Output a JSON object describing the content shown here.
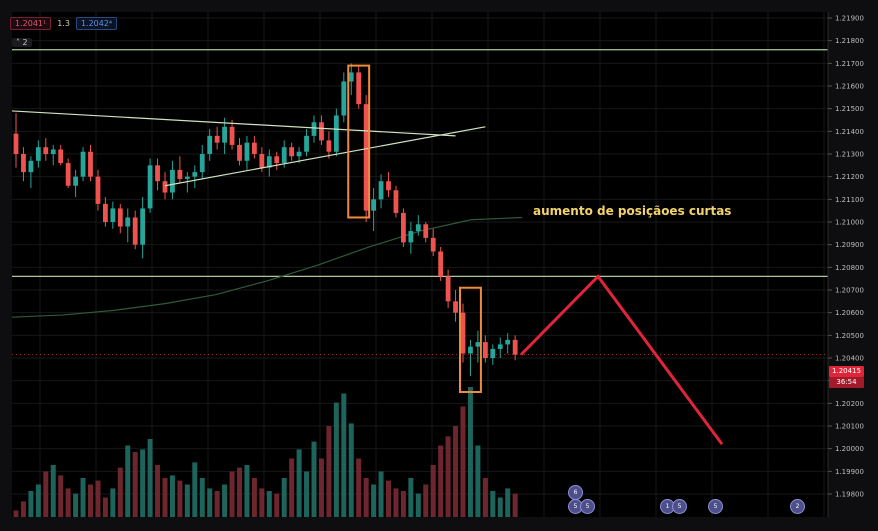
{
  "toolbar": {
    "bid": "1.2041¹",
    "spread": "1.3",
    "ask": "1.2042⁴",
    "collapse_label": "2"
  },
  "annotation": "aumento de posiçãoes curtas",
  "price_axis": {
    "current_price": "1.20415",
    "countdown": "36:54"
  },
  "event_badges": [
    "6",
    "5",
    "5",
    "1",
    "5",
    "5",
    "2"
  ],
  "colors": {
    "bull": "#26a69a",
    "bear": "#ef5350",
    "projection": "#e0243a",
    "highlight_box": "#f08a3c",
    "trendline": "#cfe3c0",
    "annotation_text": "#f3d36b"
  },
  "chart_data": {
    "type": "candlestick",
    "y_axis": {
      "min": 1.198,
      "max": 1.219,
      "ticks": [
        "1.21900",
        "1.21800",
        "1.21700",
        "1.21600",
        "1.21500",
        "1.21400",
        "1.21300",
        "1.21200",
        "1.21100",
        "1.21000",
        "1.20900",
        "1.20800",
        "1.20700",
        "1.20600",
        "1.20500",
        "1.20400",
        "1.20300",
        "1.20200",
        "1.20100",
        "1.20000",
        "1.19900",
        "1.19800"
      ]
    },
    "horizontal_levels": [
      1.2176,
      1.2076
    ],
    "current_price_line": 1.20415,
    "moving_average": [
      1.2058,
      1.2059,
      1.2061,
      1.2064,
      1.2068,
      1.2074,
      1.2081,
      1.2089,
      1.2096,
      1.2101,
      1.2102
    ],
    "candles": [
      [
        1.2139,
        1.2148,
        1.2124,
        1.213
      ],
      [
        1.213,
        1.2133,
        1.2118,
        1.2122
      ],
      [
        1.2122,
        1.2129,
        1.2115,
        1.2127
      ],
      [
        1.2127,
        1.2136,
        1.2124,
        1.2133
      ],
      [
        1.2133,
        1.2137,
        1.2127,
        1.213
      ],
      [
        1.213,
        1.2134,
        1.2125,
        1.2132
      ],
      [
        1.2132,
        1.2134,
        1.2125,
        1.2126
      ],
      [
        1.2126,
        1.2128,
        1.2115,
        1.2116
      ],
      [
        1.2116,
        1.2123,
        1.2111,
        1.212
      ],
      [
        1.212,
        1.2133,
        1.2118,
        1.2131
      ],
      [
        1.2131,
        1.2134,
        1.2118,
        1.212
      ],
      [
        1.212,
        1.2123,
        1.2105,
        1.2108
      ],
      [
        1.2108,
        1.2111,
        1.2098,
        1.21
      ],
      [
        1.21,
        1.2109,
        1.2097,
        1.2106
      ],
      [
        1.2106,
        1.2108,
        1.2095,
        1.2098
      ],
      [
        1.2098,
        1.2106,
        1.2091,
        1.2102
      ],
      [
        1.2102,
        1.2105,
        1.2088,
        1.209
      ],
      [
        1.209,
        1.2111,
        1.2084,
        1.2106
      ],
      [
        1.2106,
        1.2128,
        1.2104,
        1.2125
      ],
      [
        1.2125,
        1.2128,
        1.2114,
        1.2118
      ],
      [
        1.2118,
        1.2122,
        1.211,
        1.2113
      ],
      [
        1.2113,
        1.2127,
        1.211,
        1.2123
      ],
      [
        1.2123,
        1.2129,
        1.2117,
        1.2119
      ],
      [
        1.2119,
        1.2122,
        1.2113,
        1.212
      ],
      [
        1.212,
        1.2125,
        1.2115,
        1.2122
      ],
      [
        1.2122,
        1.2134,
        1.2119,
        1.213
      ],
      [
        1.213,
        1.2141,
        1.2127,
        1.2138
      ],
      [
        1.2138,
        1.2142,
        1.2132,
        1.2135
      ],
      [
        1.2135,
        1.2146,
        1.213,
        1.2142
      ],
      [
        1.2142,
        1.2145,
        1.2132,
        1.2134
      ],
      [
        1.2134,
        1.2137,
        1.2125,
        1.2127
      ],
      [
        1.2127,
        1.2138,
        1.2123,
        1.2135
      ],
      [
        1.2135,
        1.2138,
        1.2128,
        1.213
      ],
      [
        1.213,
        1.2133,
        1.2122,
        1.2124
      ],
      [
        1.2124,
        1.2132,
        1.212,
        1.2129
      ],
      [
        1.2129,
        1.2131,
        1.2123,
        1.2126
      ],
      [
        1.2126,
        1.2136,
        1.2124,
        1.2133
      ],
      [
        1.2133,
        1.2135,
        1.2127,
        1.2129
      ],
      [
        1.2129,
        1.2133,
        1.2126,
        1.2131
      ],
      [
        1.2131,
        1.2141,
        1.2129,
        1.2138
      ],
      [
        1.2138,
        1.2147,
        1.2135,
        1.2144
      ],
      [
        1.2144,
        1.2147,
        1.2134,
        1.2136
      ],
      [
        1.2136,
        1.214,
        1.2128,
        1.2131
      ],
      [
        1.2131,
        1.215,
        1.2129,
        1.2147
      ],
      [
        1.2147,
        1.2166,
        1.2144,
        1.2162
      ],
      [
        1.2162,
        1.217,
        1.2156,
        1.2166
      ],
      [
        1.2166,
        1.2169,
        1.215,
        1.2152
      ],
      [
        1.2152,
        1.2156,
        1.21,
        1.2105
      ],
      [
        1.2105,
        1.2115,
        1.2096,
        1.211
      ],
      [
        1.211,
        1.2121,
        1.2106,
        1.2118
      ],
      [
        1.2118,
        1.2122,
        1.2111,
        1.2114
      ],
      [
        1.2114,
        1.2116,
        1.2102,
        1.2104
      ],
      [
        1.2104,
        1.2106,
        1.2089,
        1.2091
      ],
      [
        1.2091,
        1.21,
        1.2086,
        1.2096
      ],
      [
        1.2096,
        1.2103,
        1.2094,
        1.2099
      ],
      [
        1.2099,
        1.21,
        1.2091,
        1.2093
      ],
      [
        1.2093,
        1.2097,
        1.2085,
        1.2087
      ],
      [
        1.2087,
        1.2089,
        1.2074,
        1.2076
      ],
      [
        1.2076,
        1.2079,
        1.2062,
        1.2065
      ],
      [
        1.2065,
        1.207,
        1.2056,
        1.206
      ],
      [
        1.206,
        1.2064,
        1.2038,
        1.2042
      ],
      [
        1.2042,
        1.2048,
        1.2032,
        1.2045
      ],
      [
        1.2045,
        1.2052,
        1.2038,
        1.2047
      ],
      [
        1.2047,
        1.205,
        1.2038,
        1.204
      ],
      [
        1.204,
        1.2046,
        1.2037,
        1.2044
      ],
      [
        1.2044,
        1.2049,
        1.204,
        1.2046
      ],
      [
        1.2046,
        1.2051,
        1.2042,
        1.2048
      ],
      [
        1.2048,
        1.205,
        1.2039,
        1.20415
      ]
    ],
    "volume_relative": [
      0.05,
      0.12,
      0.2,
      0.25,
      0.35,
      0.4,
      0.32,
      0.22,
      0.18,
      0.3,
      0.25,
      0.28,
      0.15,
      0.22,
      0.38,
      0.55,
      0.5,
      0.52,
      0.6,
      0.4,
      0.3,
      0.32,
      0.28,
      0.25,
      0.42,
      0.3,
      0.22,
      0.2,
      0.25,
      0.35,
      0.38,
      0.4,
      0.3,
      0.22,
      0.2,
      0.18,
      0.3,
      0.45,
      0.52,
      0.35,
      0.58,
      0.45,
      0.7,
      0.88,
      0.95,
      0.72,
      0.45,
      0.3,
      0.25,
      0.35,
      0.28,
      0.22,
      0.2,
      0.3,
      0.18,
      0.25,
      0.4,
      0.55,
      0.62,
      0.7,
      0.85,
      1.0,
      0.55,
      0.3,
      0.2,
      0.15,
      0.22,
      0.18
    ],
    "triangle": {
      "upper": [
        [
          0,
          1.2149
        ],
        [
          59,
          1.2138
        ]
      ],
      "lower": [
        [
          20,
          1.2116
        ],
        [
          63,
          1.2142
        ]
      ]
    },
    "highlight_boxes": [
      {
        "from_index": 45,
        "to_index": 47,
        "high": 1.2169,
        "low": 1.2102
      },
      {
        "from_index": 60,
        "to_index": 62,
        "high": 1.2071,
        "low": 1.2025
      }
    ],
    "projection": [
      [
        0,
        1.20415
      ],
      [
        1,
        1.2076
      ],
      [
        2,
        1.2002
      ]
    ]
  }
}
